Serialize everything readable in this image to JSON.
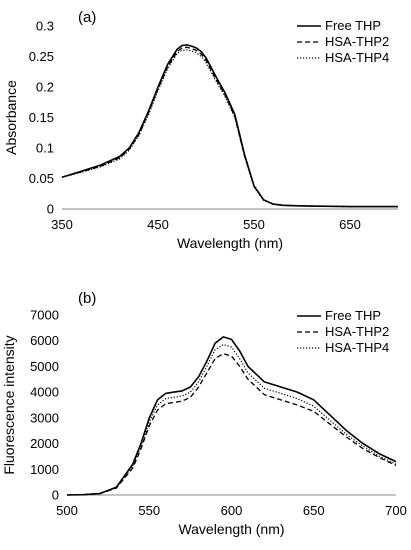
{
  "chart_data": [
    {
      "panel_label": "(a)",
      "type": "line",
      "xlabel": "Wavelength (nm)",
      "ylabel": "Absorbance",
      "xlim": [
        350,
        700
      ],
      "ylim": [
        0,
        0.3
      ],
      "xticks": [
        "350",
        "450",
        "550",
        "650"
      ],
      "yticks": [
        "0",
        "0.05",
        "0.1",
        "0.15",
        "0.2",
        "0.25",
        "0.3"
      ],
      "legend_position": "top-right",
      "grid": false,
      "series": [
        {
          "name": "Free THP",
          "style": "solid",
          "x": [
            350,
            370,
            390,
            410,
            420,
            430,
            440,
            450,
            460,
            470,
            475,
            480,
            485,
            490,
            495,
            500,
            510,
            520,
            530,
            540,
            550,
            560,
            570,
            580,
            600,
            650,
            700
          ],
          "y": [
            0.052,
            0.062,
            0.072,
            0.086,
            0.1,
            0.125,
            0.16,
            0.2,
            0.237,
            0.262,
            0.268,
            0.269,
            0.267,
            0.264,
            0.258,
            0.248,
            0.218,
            0.19,
            0.155,
            0.09,
            0.038,
            0.015,
            0.008,
            0.006,
            0.005,
            0.004,
            0.004
          ]
        },
        {
          "name": "HSA-THP2",
          "style": "dashed",
          "x": [
            350,
            370,
            390,
            410,
            420,
            430,
            440,
            450,
            460,
            470,
            475,
            480,
            485,
            490,
            495,
            500,
            510,
            520,
            530,
            540,
            550,
            560,
            570,
            580,
            600,
            650,
            700
          ],
          "y": [
            0.052,
            0.061,
            0.07,
            0.084,
            0.098,
            0.122,
            0.157,
            0.197,
            0.233,
            0.258,
            0.264,
            0.265,
            0.263,
            0.26,
            0.254,
            0.244,
            0.214,
            0.186,
            0.152,
            0.088,
            0.037,
            0.015,
            0.008,
            0.006,
            0.005,
            0.004,
            0.004
          ]
        },
        {
          "name": "HSA-THP4",
          "style": "dotted",
          "x": [
            350,
            370,
            390,
            410,
            420,
            430,
            440,
            450,
            460,
            470,
            475,
            480,
            485,
            490,
            495,
            500,
            510,
            520,
            530,
            540,
            550,
            560,
            570,
            580,
            600,
            650,
            700
          ],
          "y": [
            0.052,
            0.06,
            0.069,
            0.082,
            0.096,
            0.12,
            0.154,
            0.194,
            0.23,
            0.255,
            0.26,
            0.261,
            0.259,
            0.256,
            0.25,
            0.24,
            0.211,
            0.184,
            0.15,
            0.087,
            0.036,
            0.014,
            0.008,
            0.006,
            0.005,
            0.004,
            0.004
          ]
        }
      ]
    },
    {
      "panel_label": "(b)",
      "type": "line",
      "xlabel": "Wavelength (nm)",
      "ylabel": "Fluorescence intensity",
      "xlim": [
        500,
        700
      ],
      "ylim": [
        0,
        7000
      ],
      "xticks": [
        "500",
        "550",
        "600",
        "650",
        "700"
      ],
      "yticks": [
        "0",
        "1000",
        "2000",
        "3000",
        "4000",
        "5000",
        "6000",
        "7000"
      ],
      "legend_position": "top-right",
      "grid": false,
      "series": [
        {
          "name": "Free THP",
          "style": "solid",
          "x": [
            500,
            510,
            520,
            530,
            540,
            545,
            550,
            555,
            560,
            565,
            570,
            575,
            580,
            585,
            590,
            595,
            600,
            605,
            610,
            620,
            630,
            640,
            650,
            660,
            670,
            680,
            690,
            700
          ],
          "y": [
            0,
            10,
            60,
            300,
            1200,
            2000,
            3000,
            3700,
            3950,
            4000,
            4050,
            4200,
            4600,
            5200,
            5900,
            6150,
            6050,
            5600,
            5000,
            4400,
            4200,
            4000,
            3700,
            3100,
            2500,
            2000,
            1600,
            1300
          ]
        },
        {
          "name": "HSA-THP2",
          "style": "dashed",
          "x": [
            500,
            510,
            520,
            530,
            540,
            545,
            550,
            555,
            560,
            565,
            570,
            575,
            580,
            585,
            590,
            595,
            600,
            605,
            610,
            620,
            630,
            640,
            650,
            660,
            670,
            680,
            690,
            700
          ],
          "y": [
            0,
            10,
            55,
            270,
            1050,
            1800,
            2700,
            3300,
            3550,
            3600,
            3650,
            3800,
            4200,
            4750,
            5300,
            5500,
            5400,
            5000,
            4500,
            3900,
            3700,
            3500,
            3250,
            2750,
            2250,
            1800,
            1450,
            1150
          ]
        },
        {
          "name": "HSA-THP4",
          "style": "dotted",
          "x": [
            500,
            510,
            520,
            530,
            540,
            545,
            550,
            555,
            560,
            565,
            570,
            575,
            580,
            585,
            590,
            595,
            600,
            605,
            610,
            620,
            630,
            640,
            650,
            660,
            670,
            680,
            690,
            700
          ],
          "y": [
            0,
            10,
            58,
            285,
            1130,
            1900,
            2850,
            3500,
            3750,
            3800,
            3850,
            4000,
            4400,
            5000,
            5650,
            5850,
            5750,
            5300,
            4750,
            4150,
            3950,
            3750,
            3450,
            2900,
            2350,
            1900,
            1500,
            1200
          ]
        }
      ]
    }
  ]
}
